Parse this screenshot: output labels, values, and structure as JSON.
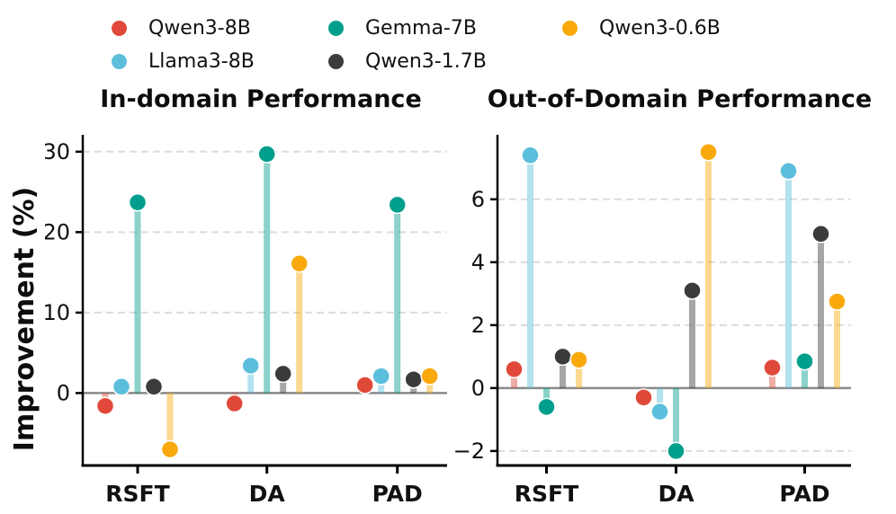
{
  "ylabel": "Improvement (%)",
  "chart_data": [
    {
      "type": "stem",
      "title": "In-domain Performance",
      "categories": [
        "RSFT",
        "DA",
        "PAD"
      ],
      "series": [
        {
          "name": "Qwen3-8B",
          "color": "#E0493A",
          "values": [
            -1.6,
            -1.3,
            1.0
          ]
        },
        {
          "name": "Llama3-8B",
          "color": "#5BBFDC",
          "values": [
            0.8,
            3.4,
            2.1
          ]
        },
        {
          "name": "Gemma-7B",
          "color": "#009E8C",
          "values": [
            23.7,
            29.7,
            23.4
          ]
        },
        {
          "name": "Qwen3-1.7B",
          "color": "#3B3B3B",
          "values": [
            0.8,
            2.4,
            1.7
          ]
        },
        {
          "name": "Qwen3-0.6B",
          "color": "#F9A90B",
          "values": [
            -7.0,
            16.1,
            2.1
          ]
        }
      ],
      "ylabel": "Improvement (%)",
      "ylim": [
        -9.0,
        32.1
      ],
      "yticks": [
        0,
        10,
        20,
        30
      ],
      "grid": "dashed horizontal gridlines at yticks",
      "zero_line": true,
      "legend_position": "top"
    },
    {
      "type": "stem",
      "title": "Out-of-Domain Performance",
      "categories": [
        "RSFT",
        "DA",
        "PAD"
      ],
      "series": [
        {
          "name": "Qwen3-8B",
          "color": "#E0493A",
          "values": [
            0.6,
            -0.3,
            0.65
          ]
        },
        {
          "name": "Llama3-8B",
          "color": "#5BBFDC",
          "values": [
            7.4,
            -0.75,
            6.9
          ]
        },
        {
          "name": "Gemma-7B",
          "color": "#009E8C",
          "values": [
            -0.6,
            -2.0,
            0.85
          ]
        },
        {
          "name": "Qwen3-1.7B",
          "color": "#3B3B3B",
          "values": [
            1.0,
            3.1,
            4.9
          ]
        },
        {
          "name": "Qwen3-0.6B",
          "color": "#F9A90B",
          "values": [
            0.9,
            7.5,
            2.75
          ]
        }
      ],
      "ylim": [
        -2.46,
        8.05
      ],
      "yticks": [
        -2,
        0,
        2,
        4,
        6
      ],
      "grid": "dashed horizontal gridlines at yticks",
      "zero_line": true
    }
  ]
}
